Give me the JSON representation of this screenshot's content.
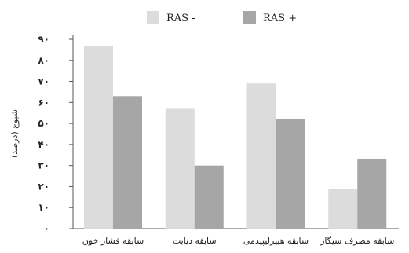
{
  "chart_data": {
    "type": "bar",
    "title": "",
    "xlabel": "",
    "ylabel": "شیوع (درصد)",
    "ylim": [
      0,
      90
    ],
    "yticks": [
      0,
      10,
      20,
      30,
      40,
      50,
      60,
      70,
      80,
      90
    ],
    "ytick_labels": [
      "۰",
      "۱۰",
      "۲۰",
      "۳۰",
      "۴۰",
      "۵۰",
      "۶۰",
      "۷۰",
      "۸۰",
      "۹۰"
    ],
    "categories": [
      "سابقه فشار خون",
      "سابقه دیابت",
      "سابقه هیپرلیپیدمی",
      "سابقه مصرف سیگار"
    ],
    "series": [
      {
        "name": "RAS -",
        "values": [
          87,
          57,
          69,
          19
        ],
        "color": "#dcdcdc"
      },
      {
        "name": "RAS +",
        "values": [
          63,
          30,
          52,
          33
        ],
        "color": "#a6a6a6"
      }
    ],
    "grid": false,
    "legend_position": "top-center"
  }
}
